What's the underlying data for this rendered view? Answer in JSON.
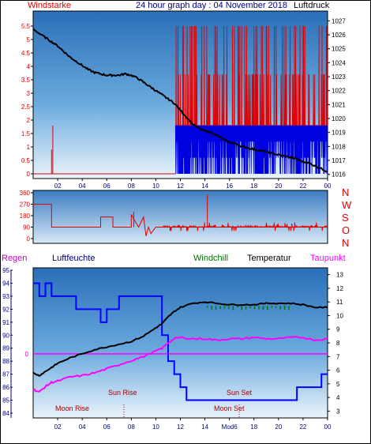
{
  "colors": {
    "wind": "#e00000",
    "wind_blue": "#0000e0",
    "pressure": "#000000",
    "direction": "#e00000",
    "humidity": "#0000ff",
    "temperature": "#000000",
    "windchill": "#007700",
    "dewpoint": "#ff00ff",
    "rain": "#cc00cc",
    "tick_blue": "#000080",
    "annotation": "#aa0000"
  },
  "header": {
    "wind_label": "Windstarke",
    "title": "24 hour graph day : 04 November 2018",
    "pressure_label": "Luftdruck"
  },
  "middle": {
    "dir_labels": [
      "N",
      "W",
      "S",
      "O",
      "N"
    ]
  },
  "bottom_header": {
    "rain_label": "Regen",
    "humidity_label": "Luftfeuchte",
    "windchill_label": "Windchill",
    "temperature_label": "Temperatur",
    "dewpoint_label": "Taupunkt"
  },
  "annotations": {
    "sun_rise": "Sun Rise",
    "sun_set": "Sun Set",
    "moon_rise": "Moon Rise",
    "moon_set": "Moon Set",
    "hour_marker": "Mod6"
  },
  "chart_data": [
    {
      "type": "line",
      "name": "wind_pressure",
      "x_ticks": [
        "02",
        "04",
        "06",
        "08",
        "10",
        "12",
        "14",
        "16",
        "18",
        "20",
        "22",
        "00"
      ],
      "y_left_ticks": [
        "0",
        "0.5",
        "1",
        "1.5",
        "2",
        "2.5",
        "3",
        "3.5",
        "4",
        "4.5",
        "5",
        "5.5"
      ],
      "y_right_ticks": [
        "1016",
        "1017",
        "1018",
        "1019",
        "1020",
        "1021",
        "1022",
        "1023",
        "1024",
        "1025",
        "1026",
        "1027"
      ],
      "ylim_left": [
        0,
        5.5
      ],
      "ylim_right": [
        1015.7,
        1027.7
      ],
      "pressure_hours": [
        0,
        0.5,
        1,
        1.5,
        2,
        2.5,
        3,
        3.5,
        4,
        4.5,
        5,
        5.5,
        6,
        6.5,
        7,
        7.5,
        8,
        8.5,
        9,
        9.5,
        10,
        10.5,
        11,
        11.5,
        12,
        12.5,
        13,
        13.5,
        14,
        14.5,
        15,
        15.5,
        16,
        16.5,
        17,
        17.5,
        18,
        18.5,
        19,
        19.5,
        20,
        20.5,
        21,
        21.5,
        22,
        22.5,
        23,
        23.5,
        24
      ],
      "pressure_values": [
        1026.4,
        1026.1,
        1025.8,
        1025.5,
        1025.2,
        1024.8,
        1024.4,
        1024.1,
        1023.8,
        1023.5,
        1023.3,
        1023.2,
        1023.1,
        1023.1,
        1023.1,
        1023.2,
        1023.1,
        1022.9,
        1022.6,
        1022.3,
        1022.0,
        1021.7,
        1021.4,
        1021.1,
        1020.6,
        1020.1,
        1019.6,
        1019.3,
        1019.1,
        1019.0,
        1018.8,
        1018.5,
        1018.3,
        1018.2,
        1018.0,
        1017.9,
        1017.8,
        1017.7,
        1017.6,
        1017.5,
        1017.4,
        1017.3,
        1017.2,
        1017.1,
        1016.9,
        1016.8,
        1016.6,
        1016.4,
        1016.2
      ],
      "wind_note": "wind near 0 until ~11:30, isolated gust 1.8 at ~01:30; after 11:30 values alternate 1.8-5.5"
    },
    {
      "type": "line",
      "name": "wind_direction",
      "yticks": [
        "360",
        "270",
        "180",
        "90",
        "0"
      ],
      "ylim": [
        0,
        360
      ],
      "hours": [
        0,
        1.5,
        1.5,
        5.5,
        5.5,
        6.5,
        6.5,
        8,
        8,
        8.4,
        8.6,
        9,
        9.2,
        9.4,
        9.6,
        10,
        10.5,
        24
      ],
      "values": [
        270,
        270,
        90,
        90,
        170,
        170,
        90,
        90,
        190,
        120,
        90,
        170,
        20,
        90,
        40,
        90,
        90,
        90
      ]
    },
    {
      "type": "line",
      "name": "temp_humidity",
      "y_left_ticks": [
        "84",
        "85",
        "86",
        "87",
        "88",
        "89",
        "90",
        "91",
        "92",
        "93",
        "94",
        "95"
      ],
      "y_right_ticks": [
        "3",
        "4",
        "5",
        "6",
        "7",
        "8",
        "9",
        "10",
        "11",
        "12",
        "13"
      ],
      "ylim_left": [
        84,
        95
      ],
      "ylim_right": [
        2.5,
        13.5
      ],
      "rain_value": "0",
      "humidity_hours": [
        0,
        0.5,
        0.5,
        1,
        1,
        1.5,
        1.5,
        3.5,
        3.5,
        5.5,
        5.5,
        6,
        6,
        7,
        7,
        10.5,
        10.5,
        11,
        11,
        11.5,
        11.5,
        12,
        12,
        12.5,
        12.5,
        13,
        13,
        14,
        14,
        21.5,
        21.5,
        23.5,
        23.5,
        24
      ],
      "humidity_values": [
        94,
        94,
        93,
        93,
        94,
        94,
        93,
        93,
        92,
        92,
        91,
        91,
        92,
        92,
        93,
        93,
        90,
        90,
        88,
        88,
        87,
        87,
        86,
        86,
        85,
        85,
        85,
        85,
        85,
        85,
        86,
        86,
        87,
        87
      ],
      "temperature_hours": [
        0,
        0.5,
        1,
        1.5,
        2,
        3,
        4,
        5,
        6,
        7,
        8,
        9,
        10,
        10.5,
        11,
        11.5,
        12,
        13,
        14,
        15,
        16,
        17,
        18,
        19,
        20,
        21,
        22,
        23,
        24
      ],
      "temperature_values": [
        5.8,
        5.6,
        5.9,
        6.2,
        6.5,
        6.9,
        7.2,
        7.5,
        7.7,
        7.9,
        8.1,
        8.5,
        9.1,
        9.4,
        9.9,
        10.3,
        10.6,
        10.9,
        11.0,
        10.9,
        10.8,
        10.8,
        10.8,
        10.9,
        10.9,
        10.9,
        10.8,
        10.6,
        10.6
      ],
      "dewpoint_hours": [
        0,
        0.5,
        1,
        1.5,
        2,
        3,
        4,
        5,
        6,
        7,
        8,
        9,
        10,
        10.5,
        11,
        11.5,
        12,
        13,
        14,
        15,
        16,
        17,
        18,
        19,
        20,
        21,
        22,
        23,
        24
      ],
      "dewpoint_values": [
        4.6,
        4.4,
        4.8,
        5.1,
        5.2,
        5.5,
        5.6,
        5.8,
        6.1,
        6.4,
        6.7,
        7.0,
        7.4,
        7.6,
        8.0,
        8.3,
        8.4,
        8.3,
        8.3,
        8.2,
        8.3,
        8.3,
        8.4,
        8.3,
        8.3,
        8.4,
        8.4,
        8.2,
        8.3
      ]
    }
  ]
}
